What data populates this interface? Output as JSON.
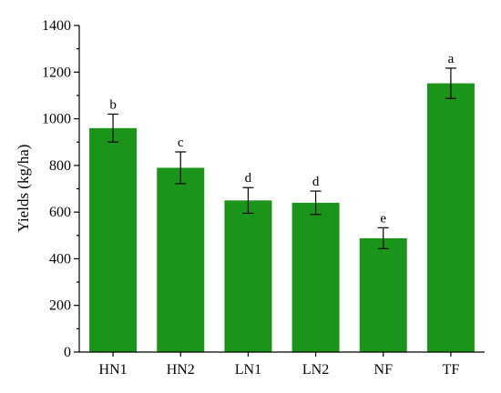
{
  "chart_data": {
    "type": "bar",
    "title": "",
    "xlabel": "",
    "ylabel": "Yields (kg/ha)",
    "ylim": [
      0,
      1400
    ],
    "yticks": [
      0,
      200,
      400,
      600,
      800,
      1000,
      1200,
      1400
    ],
    "categories": [
      "HN1",
      "HN2",
      "LN1",
      "LN2",
      "NF",
      "TF"
    ],
    "values": [
      960,
      790,
      650,
      640,
      488,
      1152
    ],
    "errors": [
      60,
      68,
      55,
      50,
      45,
      65
    ],
    "significance_letters": [
      "b",
      "c",
      "d",
      "d",
      "e",
      "a"
    ],
    "bar_color": "#1a9419",
    "grid": false,
    "legend": "none"
  }
}
